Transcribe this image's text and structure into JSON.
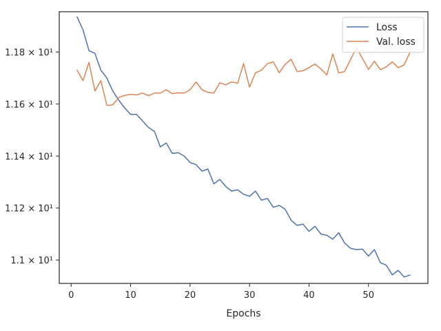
{
  "chart_data": {
    "type": "line",
    "xlabel": "Epochs",
    "ylabel": "",
    "xlim": [
      -2,
      60
    ],
    "ylim": [
      10.91,
      11.955
    ],
    "xticks": [
      0,
      10,
      20,
      30,
      40,
      50
    ],
    "yticks": [
      {
        "value": 11.0,
        "label": "1.1 × 10¹"
      },
      {
        "value": 11.2,
        "label": "1.12 × 10¹"
      },
      {
        "value": 11.4,
        "label": "1.14 × 10¹"
      },
      {
        "value": 11.6,
        "label": "1.16 × 10¹"
      },
      {
        "value": 11.8,
        "label": "1.18 × 10¹"
      }
    ],
    "x": [
      1,
      2,
      3,
      4,
      5,
      6,
      7,
      8,
      9,
      10,
      11,
      12,
      13,
      14,
      15,
      16,
      17,
      18,
      19,
      20,
      21,
      22,
      23,
      24,
      25,
      26,
      27,
      28,
      29,
      30,
      31,
      32,
      33,
      34,
      35,
      36,
      37,
      38,
      39,
      40,
      41,
      42,
      43,
      44,
      45,
      46,
      47,
      48,
      49,
      50,
      51,
      52,
      53,
      54,
      55,
      56,
      57
    ],
    "series": [
      {
        "name": "Loss",
        "color": "#4c72b0",
        "values": [
          11.935,
          11.885,
          11.805,
          11.795,
          11.73,
          11.7,
          11.65,
          11.615,
          11.585,
          11.56,
          11.56,
          11.535,
          11.51,
          11.495,
          11.435,
          11.45,
          11.41,
          11.413,
          11.4,
          11.375,
          11.367,
          11.342,
          11.35,
          11.293,
          11.31,
          11.283,
          11.265,
          11.27,
          11.253,
          11.245,
          11.265,
          11.23,
          11.237,
          11.203,
          11.21,
          11.195,
          11.153,
          11.133,
          11.138,
          11.11,
          11.13,
          11.1,
          11.095,
          11.08,
          11.105,
          11.065,
          11.045,
          11.04,
          11.042,
          11.015,
          11.04,
          10.99,
          10.98,
          10.943,
          10.96,
          10.935,
          10.942
        ]
      },
      {
        "name": "Val. loss",
        "color": "#dd8452",
        "values": [
          11.73,
          11.69,
          11.76,
          11.65,
          11.69,
          11.595,
          11.597,
          11.625,
          11.633,
          11.637,
          11.635,
          11.642,
          11.632,
          11.642,
          11.642,
          11.655,
          11.64,
          11.643,
          11.642,
          11.655,
          11.685,
          11.655,
          11.645,
          11.642,
          11.682,
          11.674,
          11.685,
          11.68,
          11.756,
          11.665,
          11.72,
          11.73,
          11.755,
          11.762,
          11.72,
          11.753,
          11.772,
          11.725,
          11.728,
          11.74,
          11.754,
          11.735,
          11.712,
          11.793,
          11.72,
          11.725,
          11.772,
          11.816,
          11.775,
          11.733,
          11.765,
          11.732,
          11.743,
          11.762,
          11.74,
          11.75,
          11.8
        ]
      }
    ],
    "legend_position": "top-right",
    "grid": false
  }
}
